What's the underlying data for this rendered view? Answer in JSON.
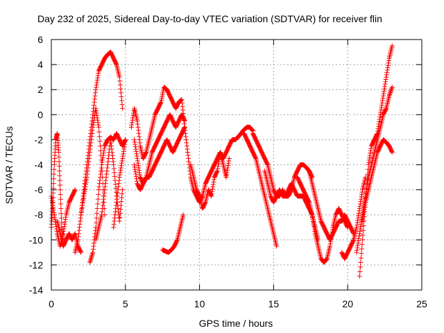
{
  "chart_data": {
    "type": "scatter",
    "title": "Day 232 of 2025, Sidereal Day-to-day VTEC variation (SDTVAR) for receiver flin",
    "xlabel": "GPS time / hours",
    "ylabel": "SDTVAR / TECUs",
    "xlim": [
      0,
      25
    ],
    "ylim": [
      -14,
      6
    ],
    "x_ticks": [
      "0",
      "5",
      "10",
      "15",
      "20",
      "25"
    ],
    "y_ticks": [
      "-14",
      "-12",
      "-10",
      "-8",
      "-6",
      "-4",
      "-2",
      "0",
      "2",
      "4",
      "6"
    ],
    "grid": true,
    "marker": "+",
    "marker_color": "#ff0000",
    "series": [
      {
        "name": "trace-01",
        "x": [
          0.0,
          0.1,
          0.2,
          0.3,
          0.4,
          0.5,
          0.6,
          0.7,
          0.8
        ],
        "y": [
          -9.0,
          -7.0,
          -4.0,
          -2.0,
          -1.5,
          -3.0,
          -6.0,
          -9.0,
          -10.5
        ]
      },
      {
        "name": "trace-02",
        "x": [
          0.0,
          0.2,
          0.4,
          0.6,
          0.8,
          1.0,
          1.2,
          1.4,
          1.6
        ],
        "y": [
          -6.5,
          -8.0,
          -9.5,
          -10.5,
          -9.5,
          -8.0,
          -7.0,
          -6.5,
          -6.0
        ]
      },
      {
        "name": "trace-03",
        "x": [
          0.4,
          0.6,
          0.8,
          1.0,
          1.2,
          1.4,
          1.6,
          1.8,
          2.0
        ],
        "y": [
          -8.5,
          -9.5,
          -10.5,
          -10.0,
          -9.5,
          -10.0,
          -9.5,
          -10.5,
          -11.0
        ]
      },
      {
        "name": "trace-04",
        "x": [
          1.6,
          1.8,
          2.0,
          2.2,
          2.4,
          2.6,
          2.8,
          3.0,
          3.2,
          3.4,
          3.6,
          3.8,
          4.0,
          4.2,
          4.4,
          4.6,
          4.8
        ],
        "y": [
          -11.0,
          -10.0,
          -8.0,
          -6.0,
          -4.0,
          -2.0,
          0.0,
          2.0,
          3.5,
          4.0,
          4.5,
          4.8,
          5.0,
          4.5,
          4.0,
          3.0,
          0.5
        ]
      },
      {
        "name": "trace-05",
        "x": [
          2.0,
          2.2,
          2.4,
          2.6,
          2.8,
          3.0,
          3.2,
          3.4,
          3.6
        ],
        "y": [
          -8.0,
          -6.5,
          -5.0,
          -3.0,
          -1.0,
          0.5,
          -1.0,
          -4.0,
          -8.0
        ]
      },
      {
        "name": "trace-06",
        "x": [
          2.6,
          2.8,
          3.0,
          3.2,
          3.4,
          3.6,
          3.8,
          4.0,
          4.2,
          4.4,
          4.6,
          4.8,
          5.0
        ],
        "y": [
          -11.8,
          -11.0,
          -9.0,
          -6.0,
          -4.0,
          -2.5,
          -2.0,
          -1.8,
          -2.0,
          -1.5,
          -2.0,
          -2.5,
          -2.0
        ]
      },
      {
        "name": "trace-07",
        "x": [
          3.0,
          3.2,
          3.4,
          3.6,
          3.8,
          4.0,
          4.2,
          4.4,
          4.6,
          4.8
        ],
        "y": [
          -10.0,
          -9.0,
          -8.0,
          -6.0,
          -4.0,
          -2.0,
          -4.0,
          -6.5,
          -8.5,
          -6.0
        ]
      },
      {
        "name": "trace-08",
        "x": [
          4.2,
          4.4,
          4.6,
          4.8,
          5.0
        ],
        "y": [
          -9.0,
          -7.0,
          -5.0,
          -3.5,
          -2.0
        ]
      },
      {
        "name": "trace-09",
        "x": [
          5.4,
          5.6,
          5.8,
          6.0,
          6.2,
          6.4,
          6.6,
          6.8,
          7.0,
          7.2,
          7.4,
          7.6,
          7.8,
          8.0,
          8.2,
          8.4,
          8.6,
          8.8,
          9.0
        ],
        "y": [
          -1.0,
          0.5,
          -0.5,
          -2.5,
          -3.5,
          -3.0,
          -2.0,
          -1.0,
          0.0,
          0.5,
          1.0,
          2.2,
          2.0,
          1.5,
          1.0,
          0.5,
          1.0,
          1.2,
          -1.0
        ]
      },
      {
        "name": "trace-10",
        "x": [
          5.6,
          5.8,
          6.0,
          6.2,
          6.4,
          6.6,
          6.8,
          7.0,
          7.2,
          7.4,
          7.6,
          7.8,
          8.0,
          8.2,
          8.4,
          8.6,
          8.8,
          9.0
        ],
        "y": [
          -2.0,
          -3.5,
          -5.0,
          -5.5,
          -5.0,
          -4.0,
          -3.0,
          -2.5,
          -2.0,
          -1.5,
          -1.0,
          -0.5,
          0.0,
          -0.5,
          -1.0,
          -0.5,
          0.0,
          -0.5
        ]
      },
      {
        "name": "trace-11",
        "x": [
          5.6,
          5.8,
          6.0,
          6.2,
          6.4,
          6.6,
          6.8,
          7.0,
          7.2,
          7.4,
          7.6,
          7.8,
          8.0,
          8.2,
          8.4,
          8.6,
          8.8,
          9.0
        ],
        "y": [
          -4.0,
          -5.5,
          -6.0,
          -5.5,
          -5.0,
          -5.0,
          -4.5,
          -4.0,
          -3.5,
          -3.0,
          -2.5,
          -2.0,
          -2.5,
          -3.0,
          -2.5,
          -2.0,
          -1.5,
          -1.0
        ]
      },
      {
        "name": "trace-12",
        "x": [
          7.5,
          7.7,
          7.9,
          8.1,
          8.3,
          8.5,
          8.7,
          8.9
        ],
        "y": [
          -10.8,
          -10.9,
          -11.0,
          -10.8,
          -10.5,
          -10.0,
          -9.0,
          -8.0
        ]
      },
      {
        "name": "trace-13",
        "x": [
          9.0,
          9.2,
          9.4,
          9.6,
          9.8,
          10.0,
          10.2,
          10.4,
          10.6,
          10.8,
          11.0,
          11.2,
          11.4,
          11.6,
          11.8,
          12.0,
          12.2,
          12.4,
          12.6,
          12.8,
          13.0,
          13.2,
          13.4,
          13.6
        ],
        "y": [
          -1.0,
          -3.0,
          -5.0,
          -6.0,
          -6.5,
          -7.0,
          -6.5,
          -5.5,
          -5.0,
          -4.5,
          -4.0,
          -3.5,
          -3.0,
          -3.5,
          -3.0,
          -2.5,
          -2.0,
          -2.0,
          -1.8,
          -1.5,
          -1.2,
          -1.0,
          -1.0,
          -1.3
        ]
      },
      {
        "name": "trace-14",
        "x": [
          9.4,
          9.6,
          9.8,
          10.0,
          10.2,
          10.4,
          10.6,
          10.8,
          11.0,
          11.2,
          11.4,
          11.6,
          11.8,
          12.0
        ],
        "y": [
          -4.0,
          -5.0,
          -6.0,
          -6.5,
          -7.5,
          -7.0,
          -6.0,
          -6.5,
          -5.0,
          -4.5,
          -3.0,
          -4.0,
          -5.0,
          -3.5
        ]
      },
      {
        "name": "trace-15",
        "x": [
          13.0,
          13.2,
          13.4,
          13.6,
          13.8,
          14.0,
          14.2,
          14.4,
          14.6,
          14.8,
          15.0,
          15.2
        ],
        "y": [
          -1.5,
          -2.0,
          -2.5,
          -3.0,
          -3.5,
          -4.5,
          -5.5,
          -6.5,
          -7.5,
          -8.5,
          -9.5,
          -10.5
        ]
      },
      {
        "name": "trace-16",
        "x": [
          13.6,
          13.8,
          14.0,
          14.2,
          14.4,
          14.6,
          14.8,
          15.0,
          15.2,
          15.4,
          15.6,
          15.8,
          16.0,
          16.2,
          16.4,
          16.6,
          16.8,
          17.0,
          17.2,
          17.4,
          17.6
        ],
        "y": [
          -1.5,
          -2.0,
          -2.5,
          -3.0,
          -3.5,
          -4.0,
          -5.0,
          -6.0,
          -6.5,
          -6.5,
          -6.0,
          -6.5,
          -6.5,
          -6.0,
          -5.0,
          -4.5,
          -4.0,
          -4.0,
          -4.2,
          -4.5,
          -5.0
        ]
      },
      {
        "name": "trace-17",
        "x": [
          14.4,
          14.6,
          14.8,
          15.0,
          15.2,
          15.4,
          15.6,
          15.8,
          16.0,
          16.2,
          16.4,
          16.6,
          16.8,
          17.0,
          17.2,
          17.4,
          17.6,
          17.8,
          18.0
        ],
        "y": [
          -4.5,
          -5.5,
          -6.5,
          -7.0,
          -6.5,
          -6.0,
          -6.5,
          -6.5,
          -6.0,
          -5.5,
          -6.0,
          -6.5,
          -6.5,
          -6.5,
          -7.0,
          -7.5,
          -8.0,
          -9.0,
          -10.0
        ]
      },
      {
        "name": "trace-18",
        "x": [
          16.6,
          16.8,
          17.0,
          17.2,
          17.4,
          17.6,
          17.8,
          18.0,
          18.2,
          18.4,
          18.6,
          18.8,
          19.0,
          19.2,
          19.4,
          19.6,
          19.8,
          20.0
        ],
        "y": [
          -5.0,
          -5.5,
          -6.0,
          -6.5,
          -7.0,
          -8.0,
          -9.5,
          -10.5,
          -11.5,
          -11.8,
          -11.5,
          -10.5,
          -9.0,
          -8.0,
          -7.5,
          -8.0,
          -8.5,
          -9.0
        ]
      },
      {
        "name": "trace-19",
        "x": [
          17.4,
          17.6,
          17.8,
          18.0,
          18.2,
          18.4,
          18.6,
          18.8,
          19.0,
          19.2,
          19.4,
          19.6,
          19.8,
          20.0,
          20.2,
          20.4
        ],
        "y": [
          -4.5,
          -5.5,
          -6.5,
          -7.5,
          -8.5,
          -9.0,
          -9.5,
          -10.0,
          -9.5,
          -9.0,
          -8.5,
          -8.5,
          -8.0,
          -8.5,
          -9.0,
          -9.5
        ]
      },
      {
        "name": "trace-20",
        "x": [
          19.6,
          19.8,
          20.0,
          20.2,
          20.4,
          20.6,
          20.8,
          21.0,
          21.2
        ],
        "y": [
          -11.0,
          -11.5,
          -11.0,
          -10.5,
          -10.0,
          -9.0,
          -7.5,
          -6.0,
          -5.0
        ]
      },
      {
        "name": "trace-21",
        "x": [
          20.8,
          21.0,
          21.2,
          21.4,
          21.6,
          21.8,
          22.0,
          22.2,
          22.4,
          22.6,
          22.8,
          23.0
        ],
        "y": [
          -12.9,
          -10.0,
          -7.0,
          -4.0,
          -2.5,
          -2.0,
          -1.5,
          0.0,
          1.5,
          3.0,
          4.5,
          5.5
        ]
      },
      {
        "name": "trace-22",
        "x": [
          20.6,
          20.8,
          21.0,
          21.2,
          21.4,
          21.6,
          21.8,
          22.0,
          22.2,
          22.4,
          22.6,
          22.8,
          23.0
        ],
        "y": [
          -11.0,
          -9.5,
          -8.0,
          -6.5,
          -5.0,
          -4.0,
          -3.0,
          -2.0,
          -1.0,
          0.0,
          0.5,
          1.5,
          2.2
        ]
      },
      {
        "name": "trace-23",
        "x": [
          21.0,
          21.2,
          21.4,
          21.6,
          21.8,
          22.0,
          22.2,
          22.4,
          22.6,
          22.8,
          23.0
        ],
        "y": [
          -8.5,
          -7.0,
          -6.0,
          -5.0,
          -4.0,
          -3.0,
          -2.5,
          -2.0,
          -2.2,
          -2.5,
          -3.0
        ]
      }
    ]
  }
}
